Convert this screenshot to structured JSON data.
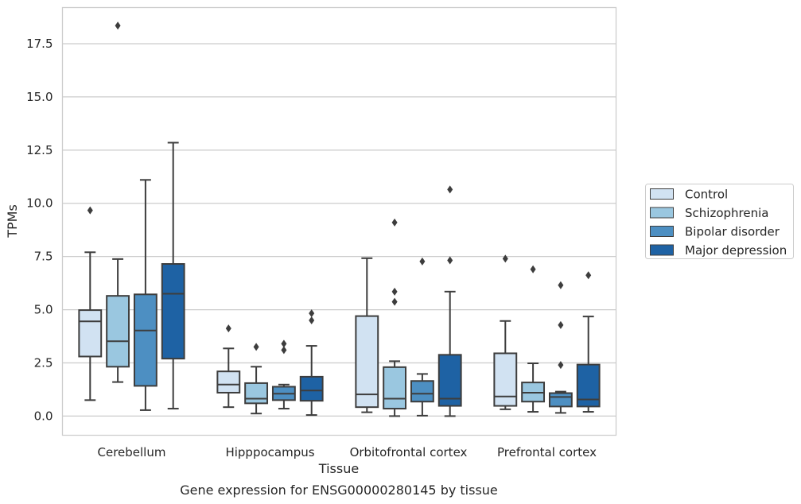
{
  "caption": "Gene expression for ENSG00000280145 by tissue",
  "chart_data": {
    "type": "box",
    "xlabel": "Tissue",
    "ylabel": "TPMs",
    "ylim": [
      -0.9,
      19.2
    ],
    "yticks": [
      0.0,
      2.5,
      5.0,
      7.5,
      10.0,
      12.5,
      15.0,
      17.5
    ],
    "ytick_labels": [
      "0.0",
      "2.5",
      "5.0",
      "7.5",
      "10.0",
      "12.5",
      "15.0",
      "17.5"
    ],
    "grid": "horizontal",
    "legend_position": "outside-right",
    "categories": [
      "Cerebellum",
      "Hipppocampus",
      "Orbitofrontal cortex",
      "Prefrontal cortex"
    ],
    "series": [
      {
        "name": "Control",
        "color": "#d1e2f2",
        "boxes": [
          {
            "whislo": 0.75,
            "q1": 2.8,
            "med": 4.45,
            "q3": 4.98,
            "whishi": 7.7,
            "fliers": [
              9.67
            ]
          },
          {
            "whislo": 0.42,
            "q1": 1.1,
            "med": 1.48,
            "q3": 2.1,
            "whishi": 3.18,
            "fliers": [
              4.12
            ]
          },
          {
            "whislo": 0.18,
            "q1": 0.42,
            "med": 1.02,
            "q3": 4.7,
            "whishi": 7.42,
            "fliers": []
          },
          {
            "whislo": 0.32,
            "q1": 0.48,
            "med": 0.92,
            "q3": 2.95,
            "whishi": 4.47,
            "fliers": [
              7.4
            ]
          }
        ]
      },
      {
        "name": "Schizophrenia",
        "color": "#9ac7e0",
        "boxes": [
          {
            "whislo": 1.6,
            "q1": 2.32,
            "med": 3.52,
            "q3": 5.65,
            "whishi": 7.38,
            "fliers": [
              18.35
            ]
          },
          {
            "whislo": 0.12,
            "q1": 0.6,
            "med": 0.82,
            "q3": 1.55,
            "whishi": 2.32,
            "fliers": [
              3.25
            ]
          },
          {
            "whislo": 0.0,
            "q1": 0.35,
            "med": 0.82,
            "q3": 2.3,
            "whishi": 2.58,
            "fliers": [
              5.37,
              5.85,
              9.1
            ]
          },
          {
            "whislo": 0.2,
            "q1": 0.68,
            "med": 1.1,
            "q3": 1.58,
            "whishi": 2.48,
            "fliers": [
              6.9
            ]
          }
        ]
      },
      {
        "name": "Bipolar disorder",
        "color": "#4d8fc2",
        "boxes": [
          {
            "whislo": 0.28,
            "q1": 1.42,
            "med": 4.02,
            "q3": 5.72,
            "whishi": 11.1,
            "fliers": []
          },
          {
            "whislo": 0.35,
            "q1": 0.75,
            "med": 1.05,
            "q3": 1.38,
            "whishi": 1.48,
            "fliers": [
              3.1,
              3.4
            ]
          },
          {
            "whislo": 0.02,
            "q1": 0.68,
            "med": 1.05,
            "q3": 1.65,
            "whishi": 1.98,
            "fliers": [
              7.27
            ]
          },
          {
            "whislo": 0.15,
            "q1": 0.45,
            "med": 0.9,
            "q3": 1.08,
            "whishi": 1.15,
            "fliers": [
              2.4,
              4.28,
              6.15
            ]
          }
        ]
      },
      {
        "name": "Major depression",
        "color": "#1e62a4",
        "boxes": [
          {
            "whislo": 0.35,
            "q1": 2.7,
            "med": 5.75,
            "q3": 7.15,
            "whishi": 12.85,
            "fliers": []
          },
          {
            "whislo": 0.05,
            "q1": 0.72,
            "med": 1.2,
            "q3": 1.85,
            "whishi": 3.3,
            "fliers": [
              4.5,
              4.83
            ]
          },
          {
            "whislo": 0.0,
            "q1": 0.48,
            "med": 0.82,
            "q3": 2.88,
            "whishi": 5.85,
            "fliers": [
              7.32,
              10.65
            ]
          },
          {
            "whislo": 0.2,
            "q1": 0.45,
            "med": 0.78,
            "q3": 2.42,
            "whishi": 4.68,
            "fliers": [
              6.62
            ]
          }
        ]
      }
    ]
  }
}
